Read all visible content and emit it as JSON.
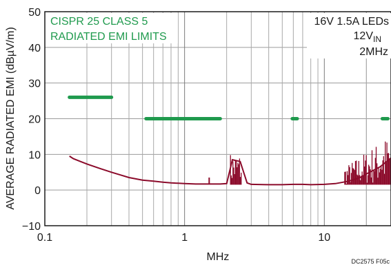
{
  "chart_data": {
    "type": "line",
    "xscale": "log",
    "xlim": [
      0.1,
      30
    ],
    "ylim": [
      -10,
      50
    ],
    "xlabel": "MHz",
    "ylabel": "AVERAGE RADIATED EMI (dBµV/m)",
    "x_ticks": [
      "0.1",
      "1",
      "10"
    ],
    "y_ticks": [
      "50",
      "40",
      "30",
      "20",
      "10",
      "0",
      "−10"
    ],
    "grid": true,
    "limits_label": [
      "CISPR 25 CLASS 5",
      "RADIATED EMI LIMITS"
    ],
    "conditions": {
      "line1": "16V 1.5A LEDs",
      "line2_main": "12V",
      "line2_sub": "IN",
      "line3": "2MHz"
    },
    "figure_code": "DC2575 F05c",
    "colors": {
      "limits": "#1f9a4d",
      "emi": "#8b0a2a",
      "text": "#1a1a1a"
    },
    "series": [
      {
        "kind": "limit",
        "segments": [
          {
            "x": [
              0.15,
              0.3
            ],
            "y": 26
          },
          {
            "x": [
              0.53,
              1.8
            ],
            "y": 20
          },
          {
            "x": [
              5.9,
              6.4
            ],
            "y": 20
          },
          {
            "x": [
              26,
              28.5
            ],
            "y": 20
          }
        ]
      },
      {
        "kind": "emi",
        "x": [
          0.15,
          0.16,
          0.18,
          0.2,
          0.25,
          0.3,
          0.35,
          0.4,
          0.5,
          0.6,
          0.7,
          0.8,
          0.9,
          1.0,
          1.2,
          1.5,
          1.8,
          2.0,
          2.2,
          2.5,
          2.8,
          3,
          4,
          5,
          6,
          7,
          8,
          10,
          12,
          15,
          18,
          20,
          25,
          30
        ],
        "y": [
          9.5,
          8.8,
          8.0,
          7.3,
          6.0,
          5.0,
          4.2,
          3.5,
          2.8,
          2.5,
          2.2,
          2.0,
          1.9,
          1.8,
          1.7,
          1.7,
          1.7,
          1.8,
          8.5,
          8.0,
          2.0,
          1.6,
          1.5,
          1.5,
          1.6,
          1.6,
          1.5,
          1.6,
          1.8,
          2.5,
          3.5,
          4.5,
          6.5,
          9.0
        ],
        "noisy_bands": [
          {
            "x": [
              2.1,
              2.55
            ],
            "ymin": 1.5,
            "ymax": 10.5
          },
          {
            "x": [
              14,
              30
            ],
            "ymin": 1.5,
            "ymax": 16
          }
        ],
        "spikes": [
          {
            "x": 1.5,
            "y": 3.5
          }
        ]
      }
    ]
  }
}
